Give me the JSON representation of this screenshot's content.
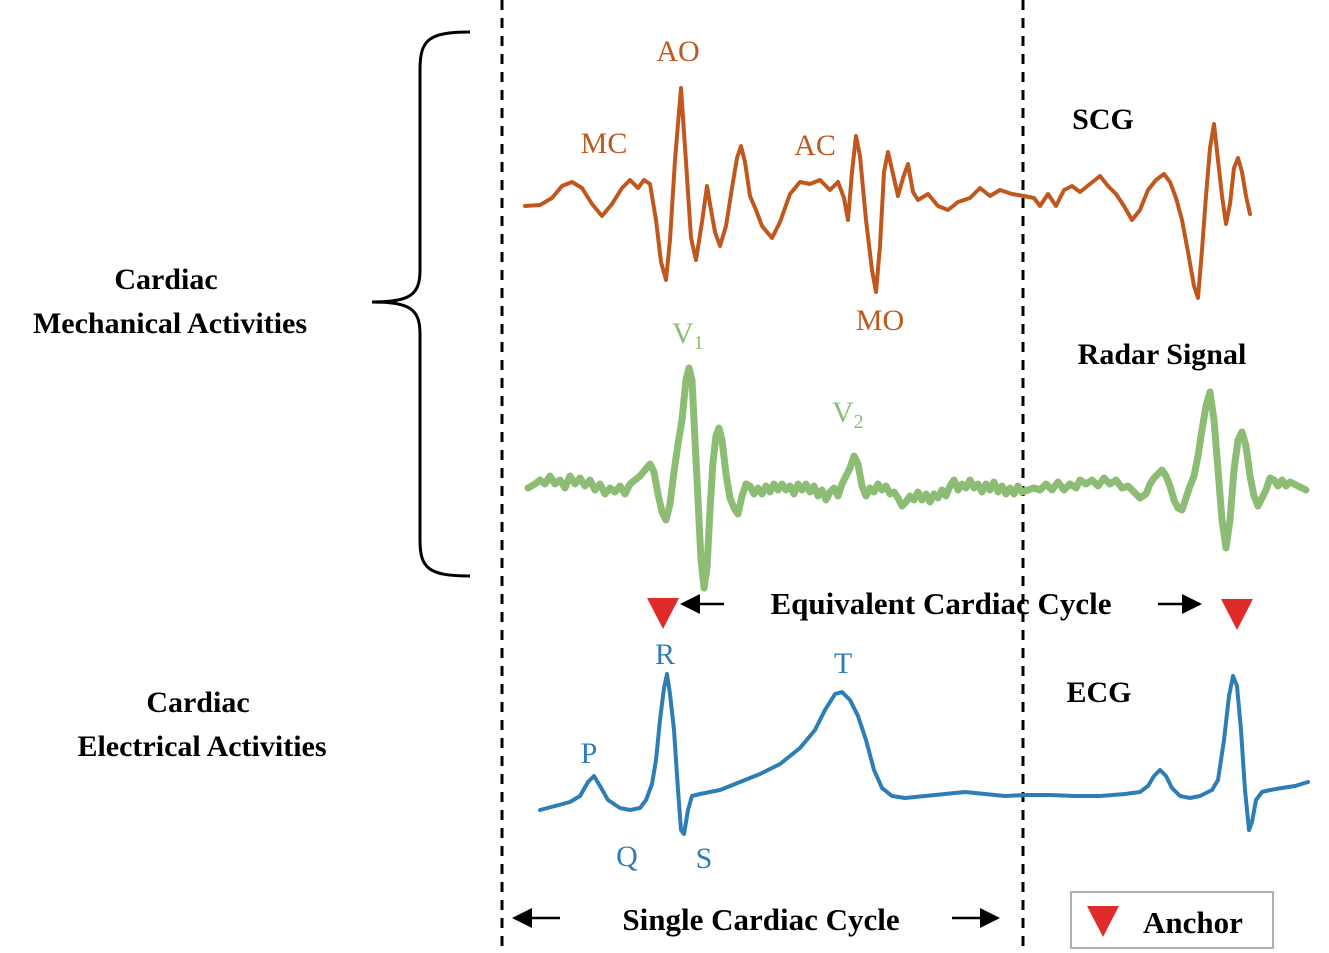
{
  "group_labels": {
    "mechanical": [
      "Cardiac",
      "Mechanical Activities"
    ],
    "electrical": [
      "Cardiac",
      "Electrical Activities"
    ]
  },
  "signals": {
    "scg": {
      "name": "SCG",
      "color": "#c0581e"
    },
    "radar": {
      "name": "Radar Signal",
      "color": "#8dbd75"
    },
    "ecg": {
      "name": "ECG",
      "color": "#2e7db5"
    }
  },
  "scg_points": {
    "MC": "MC",
    "AO": "AO",
    "AC": "AC",
    "MO": "MO"
  },
  "radar_points": {
    "v1": "V",
    "v1_sub": "1",
    "v2": "V",
    "v2_sub": "2"
  },
  "ecg_points": {
    "P": "P",
    "Q": "Q",
    "R": "R",
    "S": "S",
    "T": "T"
  },
  "cycle_labels": {
    "equivalent": "Equivalent Cardiac Cycle",
    "single": "Single Cardiac Cycle"
  },
  "legend": {
    "anchor": "Anchor",
    "anchor_color": "#e02b2b"
  }
}
